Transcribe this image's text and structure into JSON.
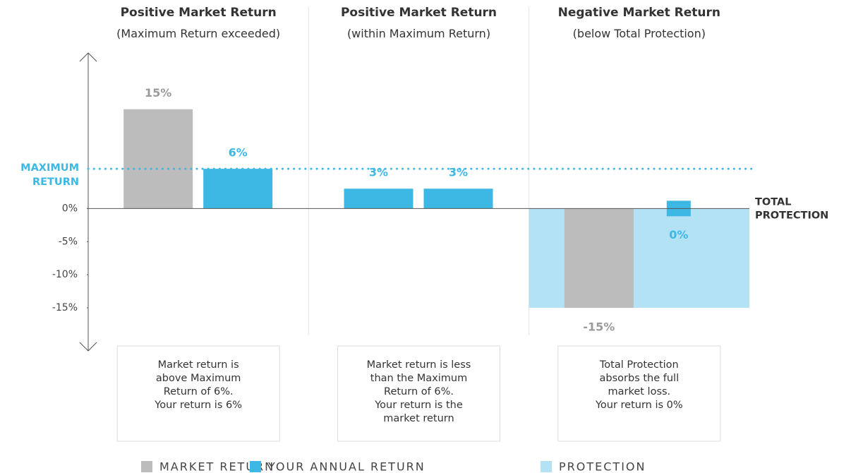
{
  "chart_data": {
    "type": "bar",
    "groups": [
      {
        "title": "Positive Market Return",
        "subtitle": "(Maximum Return exceeded)",
        "note": [
          "Market return is",
          "above Maximum",
          "Return of 6%.",
          "Your return is 6%"
        ]
      },
      {
        "title": "Positive Market Return",
        "subtitle": "(within Maximum Return)",
        "note": [
          "Market return is less",
          "than the Maximum",
          "Return of 6%.",
          "Your return is the",
          "market return"
        ]
      },
      {
        "title": "Negative Market Return",
        "subtitle": "(below Total Protection)",
        "note": [
          "Total Protection",
          "absorbs the full",
          "market loss.",
          "Your return is 0%"
        ]
      }
    ],
    "series": [
      {
        "name": "MARKET RETURN",
        "color": "#bcbcbc",
        "colors": [
          "#bcbcbc",
          "#3db8e5",
          "#bcbcbc"
        ],
        "values": [
          15,
          3,
          -15
        ],
        "value_labels": [
          "15%",
          "3%",
          "-15%"
        ]
      },
      {
        "name": "YOUR ANNUAL RETURN",
        "color": "#3db8e5",
        "values": [
          6,
          3,
          0
        ],
        "value_labels": [
          "6%",
          "3%",
          "0%"
        ]
      },
      {
        "name": "PROTECTION",
        "color": "#b3e2f5",
        "values": [
          null,
          null,
          -15
        ]
      }
    ],
    "maximum_return": {
      "value": 6,
      "label": [
        "MAXIMUM",
        "RETURN"
      ],
      "color": "#3db8e5"
    },
    "total_protection": {
      "value": 0,
      "label": [
        "TOTAL",
        "PROTECTION"
      ]
    },
    "ylim": [
      -21.5,
      23.5
    ],
    "yticks": [
      {
        "value": 0,
        "label": "0%"
      },
      {
        "value": -5,
        "label": "-5%"
      },
      {
        "value": -10,
        "label": "-10%"
      },
      {
        "value": -15,
        "label": "-15%"
      }
    ]
  }
}
